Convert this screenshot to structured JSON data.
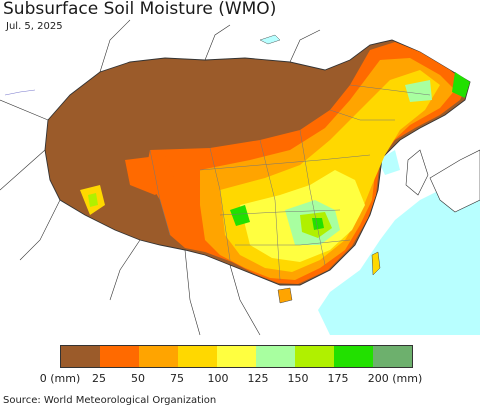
{
  "header": {
    "title": "Subsurface Soil Moisture (WMO)",
    "date": "Jul. 5, 2025"
  },
  "legend": {
    "colors": [
      "#9b5b2a",
      "#ff6a00",
      "#ffa400",
      "#ffd800",
      "#ffff40",
      "#a8ffa0",
      "#b0f000",
      "#22e000",
      "#6db06d"
    ],
    "ticks": [
      "0 (mm)",
      "25",
      "50",
      "75",
      "100",
      "125",
      "150",
      "175",
      "200 (mm)"
    ]
  },
  "footer": {
    "source": "Source: World Meteorological Organization"
  },
  "map": {
    "ocean_color": "#b8ffff",
    "land_color": "#ffffff",
    "driest_color": "#9b5b2a",
    "wettest_color": "#22e000"
  }
}
